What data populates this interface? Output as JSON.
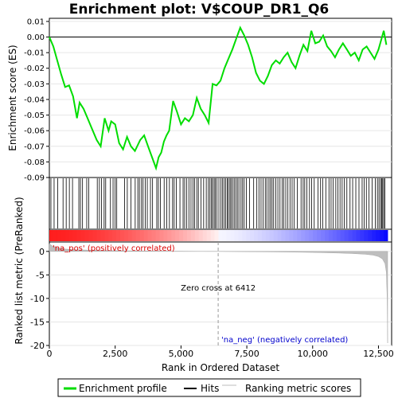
{
  "chart_data": {
    "type": "line",
    "title": "Enrichment plot: V$COUP_DR1_Q6",
    "xlabel": "Rank in Ordered Dataset",
    "top_ylabel": "Enrichment score (ES)",
    "bottom_ylabel": "Ranked list metric (PreRanked)",
    "xlim": [
      0,
      13000
    ],
    "x_ticks": [
      0,
      2500,
      5000,
      7500,
      10000,
      12500
    ],
    "x_tick_labels": [
      "0",
      "2,500",
      "5,000",
      "7,500",
      "10,000",
      "12,500"
    ],
    "es_ylim": [
      -0.09,
      0.012
    ],
    "es_ticks": [
      0.01,
      0.0,
      -0.01,
      -0.02,
      -0.03,
      -0.04,
      -0.05,
      -0.06,
      -0.07,
      -0.08,
      -0.09
    ],
    "es_tick_labels": [
      "0.01",
      "0.00",
      "-0.01",
      "-0.02",
      "-0.03",
      "-0.04",
      "-0.05",
      "-0.06",
      "-0.07",
      "-0.08",
      "-0.09"
    ],
    "metric_ylim": [
      -20,
      2
    ],
    "metric_ticks": [
      0,
      -5,
      -10,
      -15,
      -20
    ],
    "metric_tick_labels": [
      "0",
      "-5",
      "-10",
      "-15",
      "-20"
    ],
    "enrichment_profile": {
      "name": "Enrichment profile",
      "color": "#00dd00",
      "x": [
        0,
        150,
        300,
        450,
        600,
        750,
        900,
        1050,
        1150,
        1300,
        1450,
        1600,
        1800,
        1950,
        2100,
        2250,
        2350,
        2500,
        2650,
        2800,
        2950,
        3100,
        3250,
        3450,
        3600,
        3750,
        3900,
        4050,
        4150,
        4250,
        4350,
        4450,
        4550,
        4700,
        4850,
        5000,
        5150,
        5300,
        5450,
        5600,
        5750,
        5900,
        6050,
        6200,
        6350,
        6500,
        6650,
        6800,
        6950,
        7100,
        7250,
        7400,
        7550,
        7700,
        7850,
        8000,
        8150,
        8300,
        8450,
        8600,
        8750,
        8900,
        9050,
        9200,
        9350,
        9500,
        9650,
        9800,
        9950,
        10100,
        10250,
        10400,
        10550,
        10700,
        10850,
        11000,
        11150,
        11300,
        11450,
        11600,
        11750,
        11900,
        12050,
        12200,
        12350,
        12500,
        12600,
        12700,
        12800
      ],
      "y": [
        0.0,
        -0.006,
        -0.015,
        -0.024,
        -0.032,
        -0.031,
        -0.038,
        -0.052,
        -0.042,
        -0.046,
        -0.052,
        -0.058,
        -0.066,
        -0.07,
        -0.052,
        -0.06,
        -0.054,
        -0.056,
        -0.068,
        -0.072,
        -0.064,
        -0.07,
        -0.073,
        -0.066,
        -0.063,
        -0.07,
        -0.077,
        -0.084,
        -0.077,
        -0.074,
        -0.067,
        -0.063,
        -0.06,
        -0.041,
        -0.048,
        -0.056,
        -0.052,
        -0.054,
        -0.05,
        -0.039,
        -0.046,
        -0.05,
        -0.055,
        -0.03,
        -0.031,
        -0.028,
        -0.02,
        -0.014,
        -0.008,
        -0.001,
        0.006,
        0.001,
        -0.005,
        -0.013,
        -0.023,
        -0.028,
        -0.03,
        -0.025,
        -0.018,
        -0.015,
        -0.017,
        -0.013,
        -0.01,
        -0.016,
        -0.02,
        -0.012,
        -0.005,
        -0.009,
        0.004,
        -0.004,
        -0.003,
        0.001,
        -0.006,
        -0.009,
        -0.013,
        -0.008,
        -0.004,
        -0.008,
        -0.012,
        -0.01,
        -0.015,
        -0.008,
        -0.006,
        -0.01,
        -0.014,
        -0.008,
        -0.002,
        0.004,
        -0.005
      ]
    },
    "hits": {
      "name": "Hits",
      "color": "#000000",
      "x": [
        60,
        180,
        320,
        520,
        640,
        760,
        880,
        1120,
        1180,
        1260,
        1420,
        1500,
        1820,
        1900,
        1980,
        2080,
        2140,
        2320,
        2420,
        2500,
        2560,
        2860,
        2960,
        3100,
        3260,
        3360,
        3420,
        3500,
        3560,
        3640,
        3720,
        3840,
        3920,
        4080,
        4140,
        4220,
        4360,
        4460,
        4560,
        4680,
        4740,
        4820,
        4960,
        5080,
        5140,
        5220,
        5300,
        5380,
        5460,
        5520,
        5600,
        5660,
        5760,
        5860,
        5960,
        6040,
        6100,
        6160,
        6200,
        6260,
        6300,
        6360,
        6440,
        6520,
        6580,
        6640,
        6700,
        6760,
        6800,
        6860,
        6900,
        6960,
        7020,
        7080,
        7140,
        7200,
        7280,
        7340,
        7400,
        7480,
        7600,
        7760,
        7880,
        7960,
        8040,
        8120,
        8200,
        8260,
        8340,
        8400,
        8460,
        8520,
        8600,
        8680,
        8760,
        8840,
        8900,
        8980,
        9060,
        9140,
        9220,
        9300,
        9420,
        9560,
        9640,
        9700,
        9780,
        9880,
        9960,
        10060,
        10200,
        10300,
        10380,
        10500,
        10620,
        10700,
        10780,
        10880,
        10960,
        11040,
        11120,
        11200,
        11300,
        11420,
        11520,
        11640,
        11760,
        11880,
        11960,
        12040,
        12140,
        12260,
        12380,
        12460,
        12520,
        12580,
        12620,
        12660,
        12700,
        12740
      ]
    },
    "metric": {
      "name": "Ranking metric scores",
      "color": "#bebebe",
      "x": [
        0,
        100,
        300,
        600,
        1000,
        2000,
        3000,
        4000,
        5000,
        6000,
        6412,
        7000,
        8000,
        9000,
        10000,
        11000,
        11500,
        12000,
        12300,
        12500,
        12650,
        12750,
        12800,
        12830,
        12850
      ],
      "y": [
        1.6,
        1.2,
        0.8,
        0.5,
        0.35,
        0.2,
        0.12,
        0.07,
        0.04,
        0.01,
        0.0,
        -0.03,
        -0.08,
        -0.14,
        -0.22,
        -0.35,
        -0.45,
        -0.6,
        -0.8,
        -1.1,
        -1.6,
        -2.6,
        -4.5,
        -10,
        -19.5
      ]
    },
    "zero_cross": {
      "x": 6412,
      "label": "Zero cross at 6412"
    },
    "pos_label": "'na_pos' (positively correlated)",
    "neg_label": "'na_neg' (negatively correlated)",
    "n_genes": 12850,
    "colors": {
      "pos": "#ff0000",
      "neutral": "#f2f2f2",
      "neg": "#0000ff",
      "pos_label": "#dd0000",
      "neg_label": "#0000cc"
    },
    "legend": {
      "placement": "bottom",
      "items": [
        "Enrichment profile",
        "Hits",
        "Ranking metric scores"
      ]
    }
  }
}
